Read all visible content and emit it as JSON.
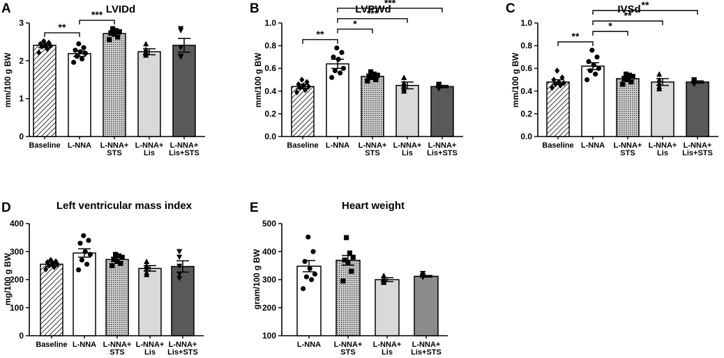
{
  "figure": {
    "panels": [
      {
        "letter": "A",
        "title": "LVIDd",
        "ylabel": "mm/100 g BW"
      },
      {
        "letter": "B",
        "title": "LVPWd",
        "ylabel": "mm/100 g BW"
      },
      {
        "letter": "C",
        "title": "IVSd",
        "ylabel": "mm/100 g BW"
      },
      {
        "letter": "D",
        "title": "Left ventricular mass index",
        "ylabel": "mg/100 g BW"
      },
      {
        "letter": "E",
        "title": "Heart weight",
        "ylabel": "gram/100 g BW"
      }
    ]
  },
  "colors": {
    "baseline": "#ffffff",
    "lnna": "#ffffff",
    "sts": "#d0d0d0",
    "lis": "#d9d9d9",
    "lis_sts": "#595959",
    "lis_sts_e": "#8c8c8c",
    "stroke": "#000000"
  },
  "chart_data": [
    {
      "type": "bar",
      "panel": "A",
      "title": "LVIDd",
      "xlabel": "",
      "ylabel": "mm/100 g BW",
      "ylim": [
        0,
        3
      ],
      "yticks": [
        "0",
        "1",
        "2",
        "3"
      ],
      "ytick_values": [
        0,
        1,
        2,
        3
      ],
      "categories": [
        [
          "Baseline"
        ],
        [
          "L-NNA"
        ],
        [
          "L-NNA+",
          "STS"
        ],
        [
          "L-NNA+",
          "Lis"
        ],
        [
          "L-NNA+",
          "Lis+STS"
        ]
      ],
      "fills": [
        "hatch",
        "white",
        "cross",
        "light",
        "dark"
      ],
      "markers": [
        "diamond",
        "circle",
        "square",
        "triangle",
        "invtriangle"
      ],
      "values": [
        2.41,
        2.19,
        2.72,
        2.24,
        2.41
      ],
      "sem": [
        0.06,
        0.07,
        0.04,
        0.08,
        0.18
      ],
      "points": [
        [
          2.22,
          2.32,
          2.38,
          2.4,
          2.42,
          2.45,
          2.48,
          2.52
        ],
        [
          1.96,
          2.05,
          2.12,
          2.2,
          2.24,
          2.28,
          2.35,
          2.45
        ],
        [
          2.56,
          2.63,
          2.7,
          2.74,
          2.77,
          2.8,
          2.85
        ],
        [
          2.15,
          2.2,
          2.24,
          2.3,
          2.45
        ],
        [
          2.1,
          2.12,
          2.35,
          2.8,
          2.85
        ]
      ],
      "significance": [
        {
          "from": 0,
          "to": 1,
          "label": "**"
        },
        {
          "from": 1,
          "to": 2,
          "label": "***"
        }
      ]
    },
    {
      "type": "bar",
      "panel": "B",
      "title": "LVPWd",
      "xlabel": "",
      "ylabel": "mm/100 g BW",
      "ylim": [
        0,
        1.0
      ],
      "yticks": [
        "0.0",
        "0.2",
        "0.4",
        "0.6",
        "0.8",
        "1.0"
      ],
      "ytick_values": [
        0,
        0.2,
        0.4,
        0.6,
        0.8,
        1.0
      ],
      "categories": [
        [
          "Baseline"
        ],
        [
          "L-NNA"
        ],
        [
          "L-NNA+",
          "STS"
        ],
        [
          "L-NNA+",
          "Lis"
        ],
        [
          "L-NNA+",
          "Lis+STS"
        ]
      ],
      "fills": [
        "hatch",
        "white",
        "cross",
        "light",
        "dark"
      ],
      "markers": [
        "diamond",
        "circle",
        "square",
        "triangle",
        "invtriangle"
      ],
      "values": [
        0.44,
        0.64,
        0.53,
        0.45,
        0.44
      ],
      "sem": [
        0.02,
        0.04,
        0.02,
        0.03,
        0.01
      ],
      "points": [
        [
          0.39,
          0.41,
          0.43,
          0.44,
          0.45,
          0.46,
          0.48,
          0.5
        ],
        [
          0.52,
          0.56,
          0.58,
          0.6,
          0.68,
          0.7,
          0.74,
          0.78
        ],
        [
          0.49,
          0.5,
          0.52,
          0.53,
          0.54,
          0.55,
          0.57
        ],
        [
          0.4,
          0.42,
          0.45,
          0.47,
          0.52
        ],
        [
          0.42,
          0.43,
          0.44,
          0.45,
          0.46
        ]
      ],
      "significance": [
        {
          "from": 0,
          "to": 1,
          "label": "**"
        },
        {
          "from": 1,
          "to": 2,
          "label": "*"
        },
        {
          "from": 1,
          "to": 3,
          "label": "***"
        },
        {
          "from": 1,
          "to": 4,
          "label": "***"
        }
      ]
    },
    {
      "type": "bar",
      "panel": "C",
      "title": "IVSd",
      "xlabel": "",
      "ylabel": "mm/100 g BW",
      "ylim": [
        0,
        1.0
      ],
      "yticks": [
        "0.0",
        "0.2",
        "0.4",
        "0.6",
        "0.8",
        "1.0"
      ],
      "ytick_values": [
        0,
        0.2,
        0.4,
        0.6,
        0.8,
        1.0
      ],
      "categories": [
        [
          "Baseline"
        ],
        [
          "L-NNA"
        ],
        [
          "L-NNA+",
          "STS"
        ],
        [
          "L-NNA+",
          "Lis"
        ],
        [
          "L-NNA+",
          "Lis+STS"
        ]
      ],
      "fills": [
        "hatch",
        "white",
        "cross",
        "light",
        "dark"
      ],
      "markers": [
        "diamond",
        "circle",
        "square",
        "triangle",
        "invtriangle"
      ],
      "values": [
        0.48,
        0.62,
        0.51,
        0.48,
        0.48
      ],
      "sem": [
        0.02,
        0.03,
        0.02,
        0.03,
        0.01
      ],
      "points": [
        [
          0.43,
          0.45,
          0.46,
          0.47,
          0.48,
          0.5,
          0.52,
          0.58
        ],
        [
          0.5,
          0.55,
          0.58,
          0.6,
          0.63,
          0.66,
          0.7,
          0.76
        ],
        [
          0.46,
          0.48,
          0.5,
          0.51,
          0.53,
          0.54,
          0.55
        ],
        [
          0.42,
          0.44,
          0.47,
          0.5,
          0.55
        ],
        [
          0.46,
          0.47,
          0.48,
          0.49,
          0.5
        ]
      ],
      "significance": [
        {
          "from": 0,
          "to": 1,
          "label": "**"
        },
        {
          "from": 1,
          "to": 2,
          "label": "*"
        },
        {
          "from": 1,
          "to": 3,
          "label": "**"
        },
        {
          "from": 1,
          "to": 4,
          "label": "**"
        }
      ]
    },
    {
      "type": "bar",
      "panel": "D",
      "title": "Left ventricular mass index",
      "xlabel": "",
      "ylabel": "mg/100 g BW",
      "ylim": [
        0,
        400
      ],
      "yticks": [
        "0",
        "100",
        "200",
        "300",
        "400"
      ],
      "ytick_values": [
        0,
        100,
        200,
        300,
        400
      ],
      "categories": [
        [
          "Baseline"
        ],
        [
          "L-NNA"
        ],
        [
          "L-NNA+",
          "STS"
        ],
        [
          "L-NNA+",
          "Lis"
        ],
        [
          "L-NNA+",
          "Lis+STS"
        ]
      ],
      "fills": [
        "hatch",
        "white",
        "cross",
        "light",
        "dark"
      ],
      "markers": [
        "diamond",
        "circle",
        "square",
        "triangle",
        "invtriangle"
      ],
      "values": [
        255,
        295,
        272,
        240,
        247
      ],
      "sem": [
        8,
        15,
        8,
        10,
        20
      ],
      "points": [
        [
          237,
          245,
          250,
          255,
          258,
          262,
          265,
          270
        ],
        [
          235,
          255,
          270,
          290,
          300,
          330,
          340,
          357
        ],
        [
          250,
          258,
          265,
          272,
          280,
          285,
          290
        ],
        [
          218,
          225,
          238,
          250,
          265
        ],
        [
          205,
          220,
          248,
          280,
          300
        ]
      ],
      "significance": []
    },
    {
      "type": "bar",
      "panel": "E",
      "title": "Heart weight",
      "xlabel": "",
      "ylabel": "gram/100 g BW",
      "ylim": [
        100,
        500
      ],
      "yticks": [
        "100",
        "200",
        "300",
        "400",
        "500"
      ],
      "ytick_values": [
        100,
        200,
        300,
        400,
        500
      ],
      "categories": [
        [
          "L-NNA"
        ],
        [
          "L-NNA+",
          "STS"
        ],
        [
          "L-NNA+",
          "Lis"
        ],
        [
          "L-NNA+",
          "Lis+STS"
        ]
      ],
      "fills": [
        "white",
        "cross",
        "light",
        "mid"
      ],
      "markers": [
        "circle",
        "square",
        "triangle",
        "invtriangle"
      ],
      "values": [
        348,
        369,
        300,
        312
      ],
      "sem": [
        20,
        17,
        7,
        3
      ],
      "points": [
        [
          268,
          300,
          310,
          320,
          340,
          365,
          400,
          452
        ],
        [
          295,
          330,
          360,
          370,
          380,
          395,
          450
        ],
        [
          290,
          295,
          300,
          305,
          315
        ],
        [
          308,
          310,
          312,
          314,
          322
        ]
      ],
      "significance": []
    }
  ]
}
